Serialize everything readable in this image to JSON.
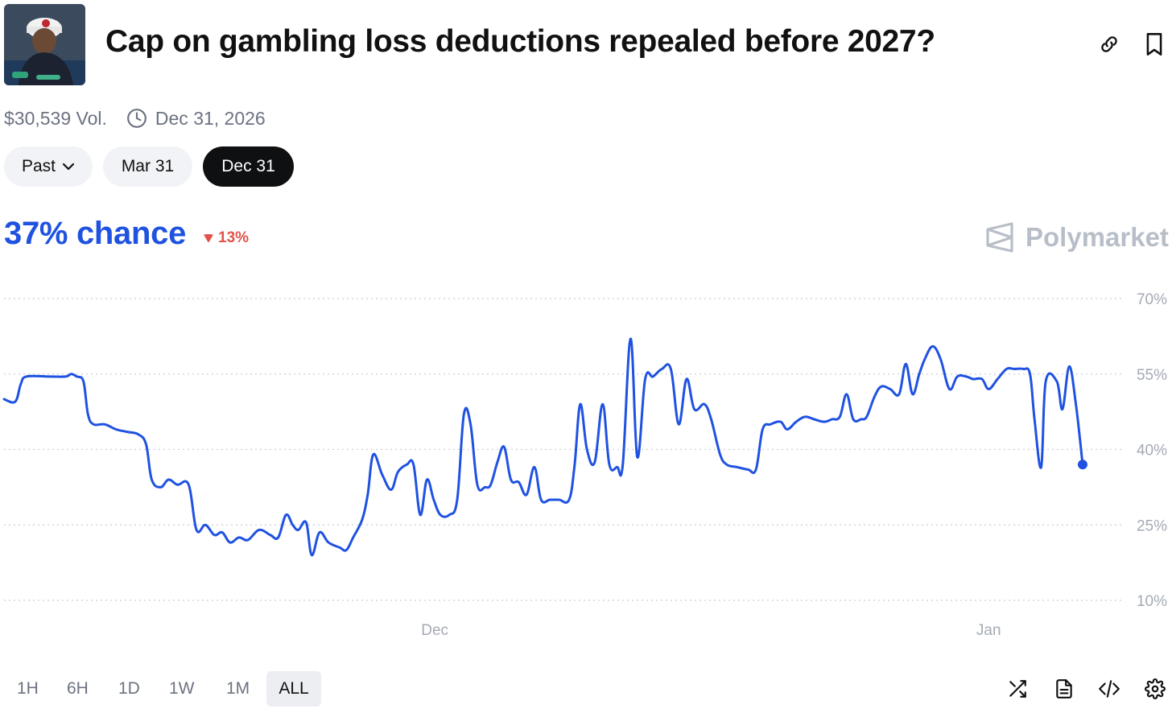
{
  "header": {
    "title": "Cap on gambling loss deductions repealed before 2027?",
    "thumbnail_icon": "poker-player-photo",
    "link_icon": "link-icon",
    "bookmark_icon": "bookmark-icon"
  },
  "meta": {
    "volume": "$30,539 Vol.",
    "end_date": "Dec 31, 2026"
  },
  "date_pills": [
    {
      "label": "Past",
      "active": false,
      "has_dropdown": true
    },
    {
      "label": "Mar 31",
      "active": false
    },
    {
      "label": "Dec 31",
      "active": true
    }
  ],
  "chance": {
    "value": "37% chance",
    "delta": "13%",
    "delta_direction": "down"
  },
  "brand": "Polymarket",
  "colors": {
    "accent": "#1f52e0",
    "negative": "#e0524b",
    "muted": "#6b7280",
    "grid": "#c9ced6"
  },
  "chart_data": {
    "type": "line",
    "yticks": [
      "70%",
      "55%",
      "40%",
      "25%",
      "10%"
    ],
    "ylim": [
      10,
      70
    ],
    "xticks": [
      {
        "label": "Dec",
        "t": 0.385
      },
      {
        "label": "Jan",
        "t": 0.88
      }
    ],
    "grid": true,
    "series": [
      {
        "values": [
          [
            0.0,
            50
          ],
          [
            0.01,
            49.5
          ],
          [
            0.015,
            53
          ],
          [
            0.02,
            54.5
          ],
          [
            0.04,
            54.5
          ],
          [
            0.055,
            54.5
          ],
          [
            0.06,
            55
          ],
          [
            0.065,
            54.5
          ],
          [
            0.071,
            53.5
          ],
          [
            0.075,
            47
          ],
          [
            0.08,
            45
          ],
          [
            0.09,
            45
          ],
          [
            0.1,
            44
          ],
          [
            0.11,
            43.5
          ],
          [
            0.12,
            43
          ],
          [
            0.127,
            41
          ],
          [
            0.132,
            34
          ],
          [
            0.14,
            32.5
          ],
          [
            0.147,
            34
          ],
          [
            0.155,
            33
          ],
          [
            0.165,
            33
          ],
          [
            0.172,
            24
          ],
          [
            0.18,
            25
          ],
          [
            0.188,
            23
          ],
          [
            0.195,
            23.5
          ],
          [
            0.202,
            21.5
          ],
          [
            0.21,
            22.5
          ],
          [
            0.218,
            22
          ],
          [
            0.228,
            24
          ],
          [
            0.238,
            23
          ],
          [
            0.245,
            22.5
          ],
          [
            0.252,
            27
          ],
          [
            0.258,
            25
          ],
          [
            0.263,
            24
          ],
          [
            0.27,
            25.5
          ],
          [
            0.275,
            19
          ],
          [
            0.282,
            23.5
          ],
          [
            0.29,
            21.5
          ],
          [
            0.3,
            20.5
          ],
          [
            0.306,
            20
          ],
          [
            0.312,
            22.5
          ],
          [
            0.32,
            26
          ],
          [
            0.325,
            31
          ],
          [
            0.33,
            39
          ],
          [
            0.338,
            35
          ],
          [
            0.346,
            32
          ],
          [
            0.352,
            35.5
          ],
          [
            0.36,
            37
          ],
          [
            0.366,
            37
          ],
          [
            0.372,
            27
          ],
          [
            0.378,
            34
          ],
          [
            0.384,
            30
          ],
          [
            0.39,
            27
          ],
          [
            0.398,
            27
          ],
          [
            0.405,
            30
          ],
          [
            0.411,
            47
          ],
          [
            0.417,
            45
          ],
          [
            0.423,
            33
          ],
          [
            0.43,
            32.5
          ],
          [
            0.435,
            33
          ],
          [
            0.441,
            37.5
          ],
          [
            0.447,
            40.5
          ],
          [
            0.453,
            34
          ],
          [
            0.46,
            33.5
          ],
          [
            0.467,
            31
          ],
          [
            0.474,
            36.5
          ],
          [
            0.48,
            30
          ],
          [
            0.488,
            30
          ],
          [
            0.496,
            30
          ],
          [
            0.505,
            30
          ],
          [
            0.51,
            37
          ],
          [
            0.515,
            49
          ],
          [
            0.521,
            40
          ],
          [
            0.528,
            37.5
          ],
          [
            0.535,
            49
          ],
          [
            0.541,
            37
          ],
          [
            0.548,
            36.5
          ],
          [
            0.553,
            37
          ],
          [
            0.56,
            62
          ],
          [
            0.566,
            38.5
          ],
          [
            0.573,
            54
          ],
          [
            0.58,
            54.5
          ],
          [
            0.588,
            56
          ],
          [
            0.596,
            56
          ],
          [
            0.603,
            45
          ],
          [
            0.61,
            54
          ],
          [
            0.617,
            48
          ],
          [
            0.626,
            49
          ],
          [
            0.632,
            46
          ],
          [
            0.64,
            39
          ],
          [
            0.646,
            37
          ],
          [
            0.655,
            36.5
          ],
          [
            0.665,
            36
          ],
          [
            0.672,
            36
          ],
          [
            0.678,
            44
          ],
          [
            0.685,
            45
          ],
          [
            0.694,
            45.5
          ],
          [
            0.7,
            44
          ],
          [
            0.708,
            45.5
          ],
          [
            0.716,
            46.5
          ],
          [
            0.724,
            46
          ],
          [
            0.733,
            45.5
          ],
          [
            0.74,
            46
          ],
          [
            0.747,
            46.5
          ],
          [
            0.753,
            51
          ],
          [
            0.759,
            46
          ],
          [
            0.766,
            46
          ],
          [
            0.771,
            46.5
          ],
          [
            0.778,
            50.5
          ],
          [
            0.784,
            52.5
          ],
          [
            0.792,
            52
          ],
          [
            0.8,
            51
          ],
          [
            0.806,
            57
          ],
          [
            0.812,
            51
          ],
          [
            0.818,
            55
          ],
          [
            0.823,
            58
          ],
          [
            0.83,
            60.5
          ],
          [
            0.837,
            58
          ],
          [
            0.845,
            52
          ],
          [
            0.852,
            54.5
          ],
          [
            0.86,
            54.5
          ],
          [
            0.866,
            54
          ],
          [
            0.874,
            54
          ],
          [
            0.88,
            52
          ],
          [
            0.888,
            54
          ],
          [
            0.896,
            56
          ],
          [
            0.903,
            56
          ],
          [
            0.911,
            56
          ],
          [
            0.917,
            55
          ],
          [
            0.921,
            46
          ],
          [
            0.927,
            36.5
          ],
          [
            0.931,
            53.5
          ],
          [
            0.941,
            53.5
          ],
          [
            0.946,
            48
          ],
          [
            0.952,
            56.5
          ],
          [
            0.958,
            49
          ],
          [
            0.964,
            37
          ]
        ]
      }
    ]
  },
  "time_ranges": [
    {
      "label": "1H",
      "active": false
    },
    {
      "label": "6H",
      "active": false
    },
    {
      "label": "1D",
      "active": false
    },
    {
      "label": "1W",
      "active": false
    },
    {
      "label": "1M",
      "active": false
    },
    {
      "label": "ALL",
      "active": true
    }
  ],
  "tools": [
    "shuffle-icon",
    "document-icon",
    "code-icon",
    "settings-icon"
  ]
}
